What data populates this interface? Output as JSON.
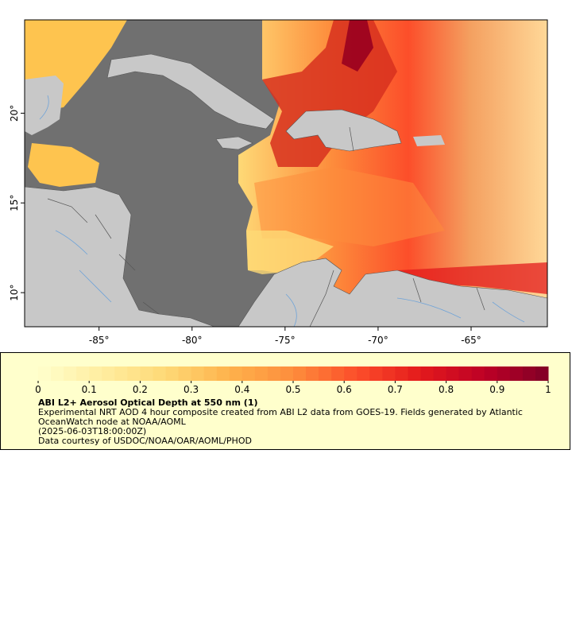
{
  "map": {
    "lon_ticks": [
      {
        "value": -85,
        "label": "-85°"
      },
      {
        "value": -80,
        "label": "-80°"
      },
      {
        "value": -75,
        "label": "-75°"
      },
      {
        "value": -70,
        "label": "-70°"
      },
      {
        "value": -65,
        "label": "-65°"
      }
    ],
    "lat_ticks": [
      {
        "value": 20,
        "label": "20°"
      },
      {
        "value": 15,
        "label": "15°"
      },
      {
        "value": 10,
        "label": "10°"
      }
    ],
    "lon_range": [
      -89,
      -60.9
    ],
    "lat_range": [
      8.1,
      25.2
    ],
    "colors": {
      "ocean_no_data": "#707070",
      "land": "#c8c8c8",
      "borders": "#555555",
      "rivers": "#6fa3d8"
    }
  },
  "legend": {
    "title": "ABI L2+ Aerosol Optical Depth at 550 nm (1)",
    "description": "Experimental NRT AOD 4 hour composite created from ABI L2 data from GOES-19. Fields generated by Atlantic OceanWatch node at NOAA/AOML",
    "timestamp": "(2025-06-03T18:00:00Z)",
    "credit": "Data courtesy of USDOC/NOAA/OAR/AOML/PHOD",
    "colorbar": {
      "min": 0,
      "max": 1,
      "ticks": [
        {
          "value": 0,
          "label": "0"
        },
        {
          "value": 0.1,
          "label": "0.1"
        },
        {
          "value": 0.2,
          "label": "0.2"
        },
        {
          "value": 0.3,
          "label": "0.3"
        },
        {
          "value": 0.4,
          "label": "0.4"
        },
        {
          "value": 0.5,
          "label": "0.5"
        },
        {
          "value": 0.6,
          "label": "0.6"
        },
        {
          "value": 0.7,
          "label": "0.7"
        },
        {
          "value": 0.8,
          "label": "0.8"
        },
        {
          "value": 0.9,
          "label": "0.9"
        },
        {
          "value": 1,
          "label": "1"
        }
      ],
      "colors": [
        "#ffffcc",
        "#ffeda0",
        "#fed976",
        "#feb24c",
        "#fd8d3c",
        "#fc4e2a",
        "#e31a1c",
        "#bd0026",
        "#800026"
      ]
    }
  }
}
